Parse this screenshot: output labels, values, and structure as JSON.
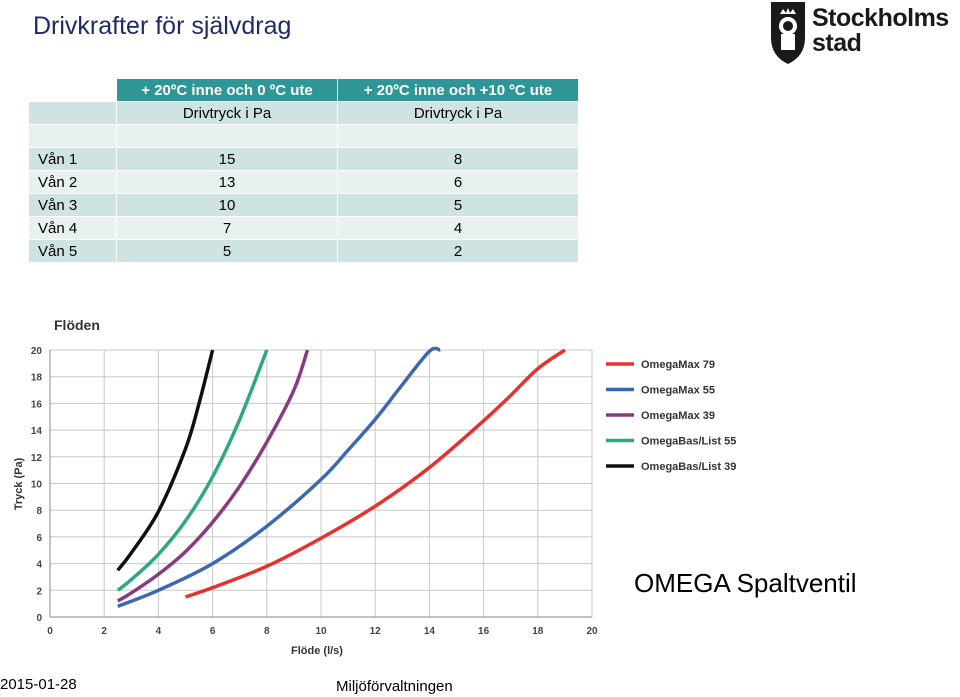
{
  "page": {
    "title": "Drivkrafter för självdrag",
    "logo_text_line1": "Stockholms",
    "logo_text_line2": "stad",
    "footer_date": "2015-01-28",
    "footer_org": "Miljöförvaltningen",
    "omega_label": "OMEGA Spaltventil"
  },
  "table": {
    "col1_header": "+ 20ºC inne och 0 ºC ute",
    "col2_header": "+ 20ºC inne och +10 ºC ute",
    "col1_sub": "Drivtryck i Pa",
    "col2_sub": "Drivtryck i Pa",
    "rows": [
      {
        "label": "Vån 1",
        "v1": "15",
        "v2": "8"
      },
      {
        "label": "Vån 2",
        "v1": "13",
        "v2": "6"
      },
      {
        "label": "Vån 3",
        "v1": "10",
        "v2": "5"
      },
      {
        "label": "Vån 4",
        "v1": "7",
        "v2": "4"
      },
      {
        "label": "Vån 5",
        "v1": "5",
        "v2": "2"
      }
    ]
  },
  "chart_data": {
    "type": "line",
    "title": "Flöden",
    "xlabel": "Flöde (l/s)",
    "ylabel": "Tryck (Pa)",
    "xlim": [
      0,
      20
    ],
    "ylim": [
      0,
      20
    ],
    "xticks": [
      "0",
      "2",
      "4",
      "6",
      "8",
      "10",
      "12",
      "14",
      "16",
      "18",
      "20"
    ],
    "yticks": [
      "0",
      "2",
      "4",
      "6",
      "8",
      "10",
      "12",
      "14",
      "16",
      "18",
      "20"
    ],
    "grid": true,
    "legend_position": "right",
    "series": [
      {
        "name": "OmegaMax 79",
        "color": "#e8302e",
        "x": [
          5.0,
          6.0,
          8.0,
          10.0,
          12.0,
          14.0,
          16.0,
          17.0,
          18.0,
          19.0
        ],
        "y": [
          1.5,
          2.2,
          3.8,
          5.9,
          8.3,
          11.2,
          14.7,
          16.6,
          18.6,
          20.0
        ]
      },
      {
        "name": "OmegaMax 55",
        "color": "#3d68b0",
        "x": [
          2.5,
          4.0,
          6.0,
          8.0,
          10.0,
          11.0,
          12.0,
          13.0,
          14.0,
          14.4
        ],
        "y": [
          0.8,
          2.0,
          4.0,
          6.8,
          10.3,
          12.5,
          14.8,
          17.4,
          19.9,
          20.0
        ]
      },
      {
        "name": "OmegaMax 39",
        "color": "#8a3a80",
        "x": [
          2.5,
          3.0,
          4.0,
          5.0,
          6.0,
          7.0,
          8.0,
          9.0,
          9.5
        ],
        "y": [
          1.2,
          1.8,
          3.2,
          4.9,
          7.1,
          9.8,
          13.1,
          17.0,
          20.0
        ]
      },
      {
        "name": "OmegaBas/List 55",
        "color": "#2ea882",
        "x": [
          2.5,
          3.0,
          4.0,
          5.0,
          6.0,
          7.0,
          8.0
        ],
        "y": [
          2.0,
          2.8,
          4.7,
          7.2,
          10.5,
          14.8,
          20.0
        ]
      },
      {
        "name": "OmegaBas/List 39",
        "color": "#111111",
        "x": [
          2.5,
          3.0,
          4.0,
          5.0,
          5.5,
          6.0
        ],
        "y": [
          3.5,
          4.8,
          7.9,
          12.6,
          16.0,
          20.0
        ]
      }
    ]
  }
}
